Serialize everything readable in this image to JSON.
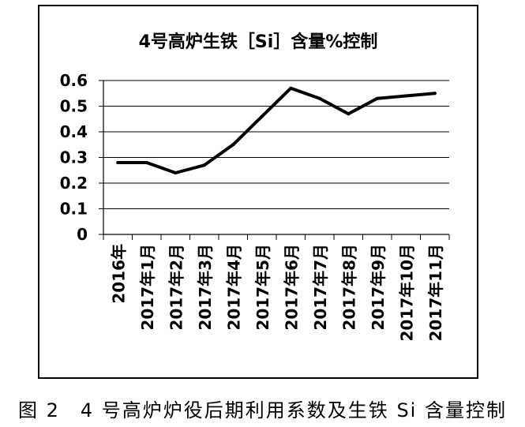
{
  "caption": "图 2　4 号高炉炉役后期利用系数及生铁 Si 含量控制",
  "chart_data": {
    "type": "line",
    "title": "4号高炉生铁［Si］含量%控制",
    "categories": [
      "2016年",
      "2017年1月",
      "2017年2月",
      "2017年3月",
      "2017年4月",
      "2017年5月",
      "2017年6月",
      "2017年7月",
      "2017年8月",
      "2017年9月",
      "2017年10月",
      "2017年11月"
    ],
    "values": [
      0.28,
      0.28,
      0.24,
      0.27,
      0.35,
      0.46,
      0.57,
      0.53,
      0.47,
      0.53,
      0.54,
      0.55
    ],
    "yticks": [
      "0",
      "0.1",
      "0.2",
      "0.3",
      "0.4",
      "0.5",
      "0.6"
    ],
    "ylim": [
      0,
      0.6
    ],
    "grid": true,
    "line_color": "#000000"
  }
}
